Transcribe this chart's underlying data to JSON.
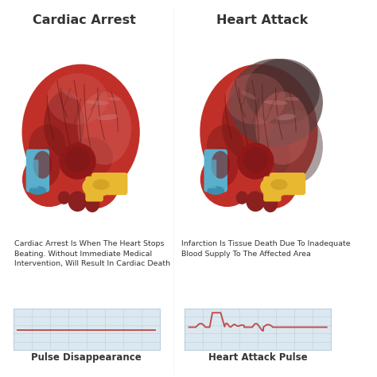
{
  "title_left": "Cardiac Arrest",
  "title_right": "Heart Attack",
  "desc_left": "Cardiac Arrest Is When The Heart Stops\nBeating. Without Immediate Medical\nIntervention, Will Result In Cardiac Death",
  "desc_right": "Infarction Is Tissue Death Due To Inadequate\nBlood Supply To The Affected Area",
  "label_left": "Pulse Disappearance",
  "label_right": "Heart Attack Pulse",
  "bg_color": "#ffffff",
  "grid_bg": "#dce8f0",
  "grid_line_color": "#b8d0de",
  "pulse_color": "#c05050",
  "text_color": "#333333",
  "title_fontsize": 11.5,
  "desc_fontsize": 6.8,
  "label_fontsize": 8.5,
  "heart_main": "#c13028",
  "heart_mid": "#a02020",
  "heart_light": "#d4706a",
  "heart_dark": "#7a1818",
  "heart_darker": "#501010",
  "heart_pink": "#d89090",
  "heart_yellow": "#e8b830",
  "heart_yellow2": "#c89820",
  "heart_blue": "#5ab0cc",
  "heart_blue2": "#3a90b0",
  "heart_infarct": "#5a4040",
  "heart_infarct2": "#3a2828",
  "heart_top_bump": "#8a2020",
  "heart_chamber": "#901818"
}
